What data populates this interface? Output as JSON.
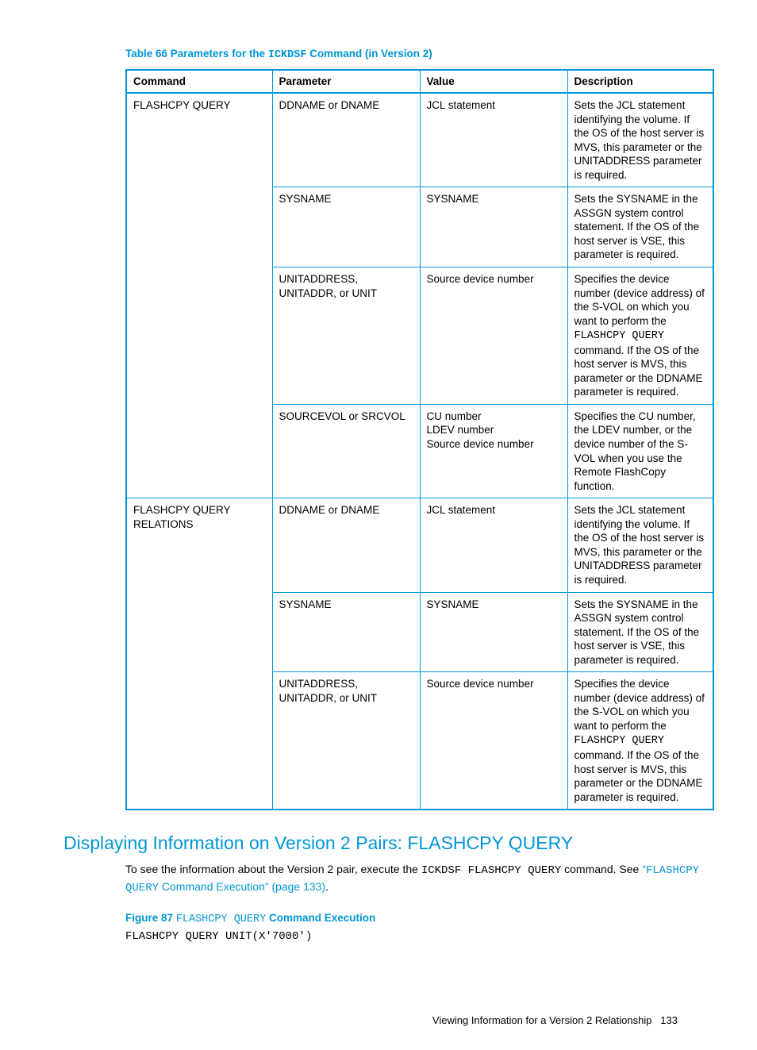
{
  "table": {
    "title_prefix": "Table 66 Parameters for the ",
    "title_code": "ICKDSF",
    "title_suffix": " Command (in Version 2)",
    "headers": [
      "Command",
      "Parameter",
      "Value",
      "Description"
    ],
    "col_widths": [
      "184px",
      "186px",
      "186px",
      "184px"
    ],
    "groups": [
      {
        "command": "FLASHCPY QUERY",
        "rows": [
          {
            "parameter": "DDNAME or DNAME",
            "value": "JCL statement",
            "description": "Sets the JCL statement identifying the volume. If the OS of the host server is MVS, this parameter or the UNITADDRESS parameter is required."
          },
          {
            "parameter": "SYSNAME",
            "value": "SYSNAME",
            "description": "Sets the SYSNAME in the ASSGN system control statement. If the OS of the host server is VSE, this parameter is required."
          },
          {
            "parameter": "UNITADDRESS, UNITADDR, or UNIT",
            "value": "Source device number",
            "description_html": "Specifies the device number (device address) of the S-VOL on which you want to perform the <span class='mono'>FLASHCPY QUERY</span> command. If the OS of the host server is MVS, this parameter or the DDNAME parameter is required."
          },
          {
            "parameter": "SOURCEVOL or SRCVOL",
            "value_html": "CU number<br>LDEV number<br>Source device number",
            "description": "Specifies the CU number, the LDEV number, or the device number of the S-VOL when you use the Remote FlashCopy function."
          }
        ]
      },
      {
        "command": "FLASHCPY QUERY RELATIONS",
        "rows": [
          {
            "parameter": "DDNAME or DNAME",
            "value": "JCL statement",
            "description": "Sets the JCL statement identifying the volume. If the OS of the host server is MVS, this parameter or the UNITADDRESS parameter is required."
          },
          {
            "parameter": "SYSNAME",
            "value": "SYSNAME",
            "description": "Sets the SYSNAME in the ASSGN system control statement. If the OS of the host server is VSE, this parameter is required."
          },
          {
            "parameter": "UNITADDRESS, UNITADDR, or UNIT",
            "value": "Source device number",
            "description_html": "Specifies the device number (device address) of the S-VOL on which you want to perform the <span class='mono'>FLASHCPY QUERY</span> command. If the OS of the host server is MVS, this parameter or the DDNAME parameter is required."
          }
        ]
      }
    ]
  },
  "section": {
    "heading": "Displaying Information on Version 2 Pairs: FLASHCPY QUERY",
    "para_pre": "To see the information about the Version 2 pair, execute the ",
    "para_cmd": "ICKDSF FLASHCPY QUERY",
    "para_post": " command. See ",
    "link_pre_code": "“",
    "link_code": "FLASHCPY QUERY",
    "link_text": " Command Execution” (page 133)",
    "para_end": "."
  },
  "figure": {
    "title_prefix": "Figure 87 ",
    "title_code": "FLASHCPY QUERY",
    "title_suffix": " Command Execution",
    "code": "FLASHCPY QUERY UNIT(X'7000')"
  },
  "footer": {
    "text": "Viewing Information for a Version 2 Relationship",
    "page": "133"
  }
}
